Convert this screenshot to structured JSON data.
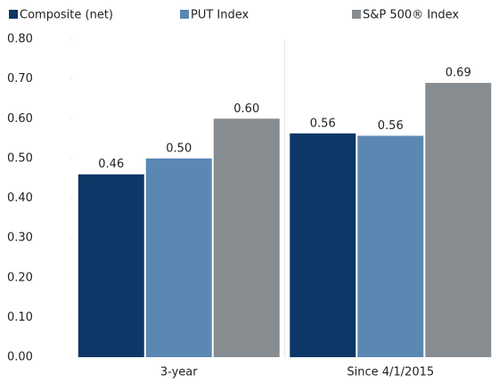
{
  "chart_data": {
    "type": "bar",
    "categories": [
      "3-year",
      "Since 4/1/2015"
    ],
    "series": [
      {
        "name": "Composite (net)",
        "color": "#0d3766",
        "values": [
          0.46,
          0.563
        ],
        "value_labels": [
          "0.46",
          "0.56"
        ]
      },
      {
        "name": "PUT Index",
        "color": "#5b87b3",
        "values": [
          0.5,
          0.557
        ],
        "value_labels": [
          "0.50",
          "0.56"
        ]
      },
      {
        "name": "S&P 500® Index",
        "color": "#878c91",
        "values": [
          0.6,
          0.69
        ],
        "value_labels": [
          "0.60",
          "0.69"
        ]
      }
    ],
    "ylim": [
      0,
      0.8
    ],
    "yticks": [
      {
        "value": 0,
        "label": "0.00"
      },
      {
        "value": 0.1,
        "label": "0.10"
      },
      {
        "value": 0.2,
        "label": "0.20"
      },
      {
        "value": 0.3,
        "label": "0.30"
      },
      {
        "value": 0.4,
        "label": "0.40"
      },
      {
        "value": 0.5,
        "label": "0.50"
      },
      {
        "value": 0.6,
        "label": "0.60"
      },
      {
        "value": 0.7,
        "label": "0.70"
      },
      {
        "value": 0.8,
        "label": "0.80"
      }
    ],
    "legend": "top"
  }
}
